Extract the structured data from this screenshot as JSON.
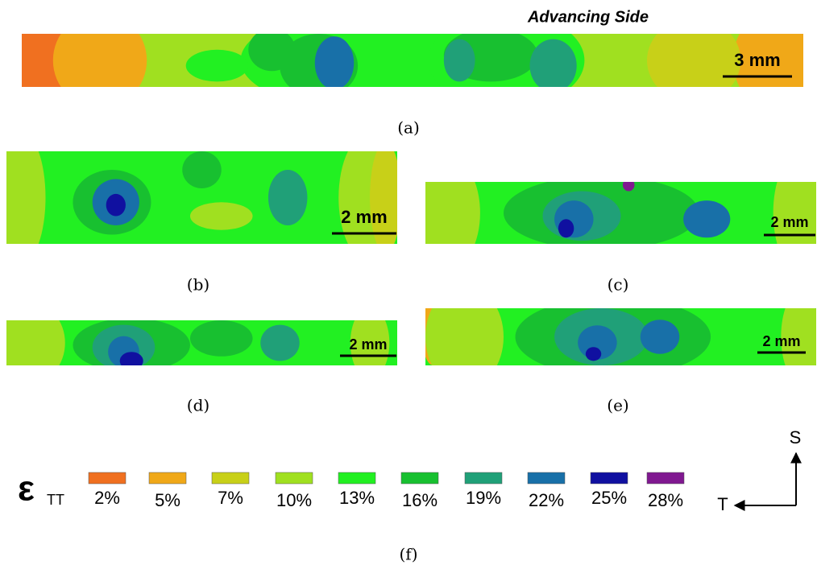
{
  "title": "Advancing Side",
  "panels": [
    {
      "caption": "(a)",
      "scale_bar": "3 mm"
    },
    {
      "caption": "(b)",
      "scale_bar": "2 mm"
    },
    {
      "caption": "(c)",
      "scale_bar": "2 mm"
    },
    {
      "caption": "(d)",
      "scale_bar": "2 mm"
    },
    {
      "caption": "(e)",
      "scale_bar": "2 mm"
    }
  ],
  "legend": {
    "symbol": "ε",
    "subscript": "TT",
    "caption": "(f)",
    "items": [
      {
        "label": "2%",
        "color": "#f07020"
      },
      {
        "label": "5%",
        "color": "#f0a818"
      },
      {
        "label": "7%",
        "color": "#c8d018"
      },
      {
        "label": "10%",
        "color": "#a0e020"
      },
      {
        "label": "13%",
        "color": "#22f022"
      },
      {
        "label": "16%",
        "color": "#18c030"
      },
      {
        "label": "19%",
        "color": "#20a078"
      },
      {
        "label": "22%",
        "color": "#1870a8"
      },
      {
        "label": "25%",
        "color": "#1010a0"
      },
      {
        "label": "28%",
        "color": "#801890"
      }
    ]
  },
  "axes": {
    "vertical": "S",
    "horizontal": "T"
  }
}
